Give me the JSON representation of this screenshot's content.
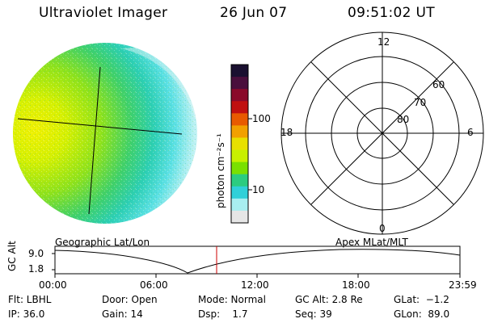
{
  "header": {
    "instrument": "Ultraviolet Imager",
    "date": "26 Jun 07",
    "time": "09:51:02 UT"
  },
  "colorbar": {
    "label": "photon cm⁻²s⁻¹",
    "ticks": [
      "100",
      "10"
    ],
    "colors_top_to_bottom": [
      "#1a1030",
      "#4a0f3c",
      "#8a0a2a",
      "#c01010",
      "#e85a00",
      "#f2a000",
      "#e8e000",
      "#c8f000",
      "#7ae000",
      "#2ccc80",
      "#30d0d8",
      "#a8eef0",
      "#e6e6e6"
    ]
  },
  "polar_plot": {
    "mlt_labels": {
      "top": "12",
      "left": "18",
      "right": "6",
      "bottom": "0"
    },
    "lat_labels": [
      "60",
      "70",
      "80"
    ]
  },
  "time_axis": {
    "left_caption": "Geographic Lat/Lon",
    "right_caption": "Apex MLat/MLT",
    "y_label": "GC Alt",
    "y_ticks": [
      "9.0",
      "1.8"
    ],
    "x_ticks": [
      "00:00",
      "06:00",
      "12:00",
      "18:00",
      "23:59"
    ],
    "marker_color": "#cc0000"
  },
  "footer": {
    "row1": [
      "Flt: LBHL",
      "Door: Open",
      "Mode: Normal",
      "GC Alt: 2.8 Re",
      "GLat:  −1.2"
    ],
    "row2": [
      "IP: 36.0",
      "Gain: 14",
      "Dsp:    1.7",
      "Seq: 39",
      "GLon:  89.0"
    ]
  }
}
